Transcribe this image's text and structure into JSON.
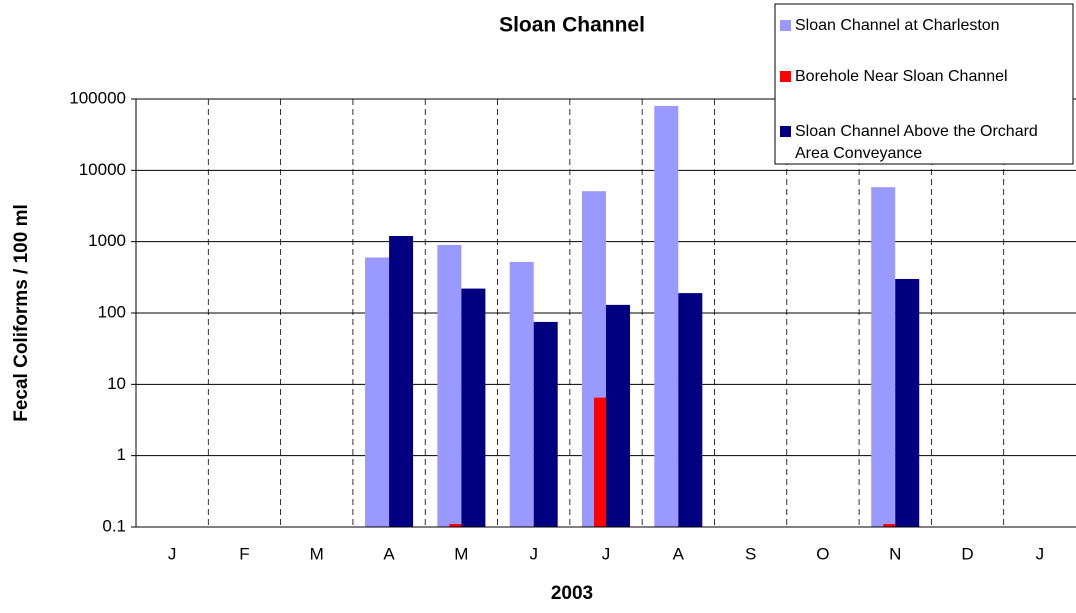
{
  "chart_data": {
    "type": "bar",
    "title": "Sloan Channel",
    "x_label": "2003",
    "y_label": "Fecal Coliforms / 100 ml",
    "categories": [
      "J",
      "F",
      "M",
      "A",
      "M",
      "J",
      "J",
      "A",
      "S",
      "O",
      "N",
      "D",
      "J"
    ],
    "series": [
      {
        "name": "Sloan Channel at Charleston",
        "color": "#9999ff",
        "values": [
          null,
          null,
          null,
          600,
          900,
          520,
          5100,
          80000,
          null,
          null,
          5800,
          null,
          null
        ]
      },
      {
        "name": "Borehole Near Sloan Channel",
        "color": "#ff0000",
        "values": [
          null,
          null,
          null,
          null,
          0.11,
          null,
          6.5,
          null,
          null,
          null,
          0.11,
          null,
          null
        ]
      },
      {
        "name": "Sloan Channel Above the Orchard Area Conveyance",
        "color": "#000080",
        "values": [
          null,
          null,
          null,
          1200,
          220,
          75,
          130,
          190,
          null,
          null,
          300,
          null,
          null
        ]
      }
    ],
    "log_scale": true,
    "ylim": [
      0.1,
      100000
    ],
    "yticks": [
      0.1,
      1,
      10,
      100,
      1000,
      10000,
      100000
    ],
    "grid": true,
    "legend_position": "top-right"
  }
}
